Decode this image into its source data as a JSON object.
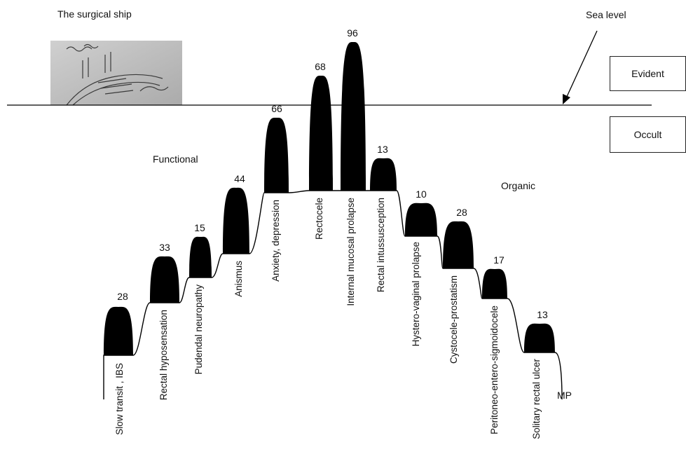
{
  "header": {
    "ship_caption": "The surgical ship",
    "sea_level_label": "Sea level",
    "evident_label": "Evident",
    "occult_label": "Occult",
    "functional_label": "Functional",
    "organic_label": "Organic",
    "end_label": "MP"
  },
  "ship_image": {
    "name": "surgical ship sketch",
    "tint": "#b8b8b8"
  },
  "colors": {
    "fill": "#000000",
    "line": "#000000",
    "water": "#000000"
  },
  "peaks": [
    {
      "value": "28",
      "label": "Slow transit , IBS"
    },
    {
      "value": "33",
      "label": "Rectal hyposensation"
    },
    {
      "value": "15",
      "label": "Pudendal neuropathy"
    },
    {
      "value": "44",
      "label": "Anismus"
    },
    {
      "value": "66",
      "label": "Anxiety, depression"
    },
    {
      "value": "68",
      "label": "Rectocele"
    },
    {
      "value": "96",
      "label": "Internal mucosal prolapse"
    },
    {
      "value": "13",
      "label": "Rectal intussusception"
    },
    {
      "value": "10",
      "label": "Hystero-vaginal prolapse"
    },
    {
      "value": "28",
      "label": "Cystocele-prostatism"
    },
    {
      "value": "17",
      "label": "Peritoneo-entero-sigmoidocele"
    },
    {
      "value": "13",
      "label": "Solitary rectal ulcer"
    }
  ]
}
